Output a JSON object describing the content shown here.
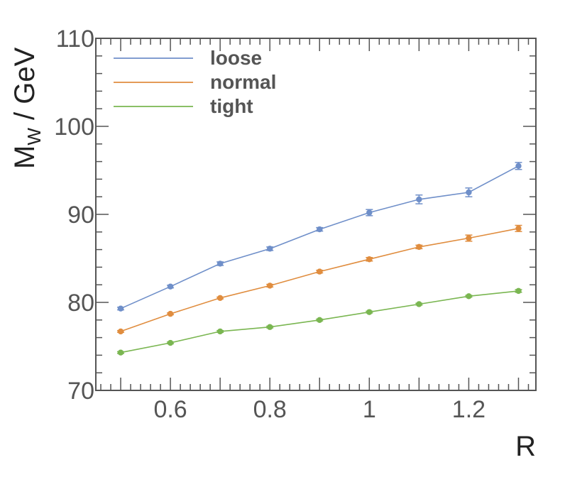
{
  "chart_data": {
    "type": "line",
    "x": [
      0.5,
      0.6,
      0.7,
      0.8,
      0.9,
      1.0,
      1.1,
      1.2,
      1.3
    ],
    "xlim": [
      0.45,
      1.335
    ],
    "ylim": [
      70,
      110
    ],
    "xticks": [
      0.6,
      0.8,
      1.0,
      1.2
    ],
    "xtick_labels": [
      "0.6",
      "0.8",
      "1",
      "1.2"
    ],
    "yticks": [
      70,
      80,
      90,
      100,
      110
    ],
    "ytick_labels": [
      "70",
      "80",
      "90",
      "100",
      "110"
    ],
    "xlabel": "R",
    "ylabel_main": "M",
    "ylabel_sub": "W",
    "ylabel_rest": " / GeV",
    "legend_position": "top-left",
    "grid": false,
    "series": [
      {
        "name": "loose",
        "color": "#6f8fc9",
        "values": [
          79.3,
          81.8,
          84.4,
          86.1,
          88.3,
          90.2,
          91.7,
          92.5,
          95.5
        ],
        "errors": [
          0.15,
          0.15,
          0.2,
          0.2,
          0.2,
          0.35,
          0.5,
          0.5,
          0.4
        ]
      },
      {
        "name": "normal",
        "color": "#e08d3f",
        "values": [
          76.7,
          78.7,
          80.5,
          81.9,
          83.5,
          84.9,
          86.3,
          87.3,
          88.4
        ],
        "errors": [
          0.1,
          0.1,
          0.1,
          0.15,
          0.15,
          0.2,
          0.2,
          0.35,
          0.35
        ]
      },
      {
        "name": "tight",
        "color": "#7ab651",
        "values": [
          74.3,
          75.4,
          76.7,
          77.2,
          78.0,
          78.9,
          79.8,
          80.7,
          81.3
        ],
        "errors": [
          0.1,
          0.1,
          0.1,
          0.1,
          0.1,
          0.1,
          0.1,
          0.1,
          0.15
        ]
      }
    ]
  }
}
